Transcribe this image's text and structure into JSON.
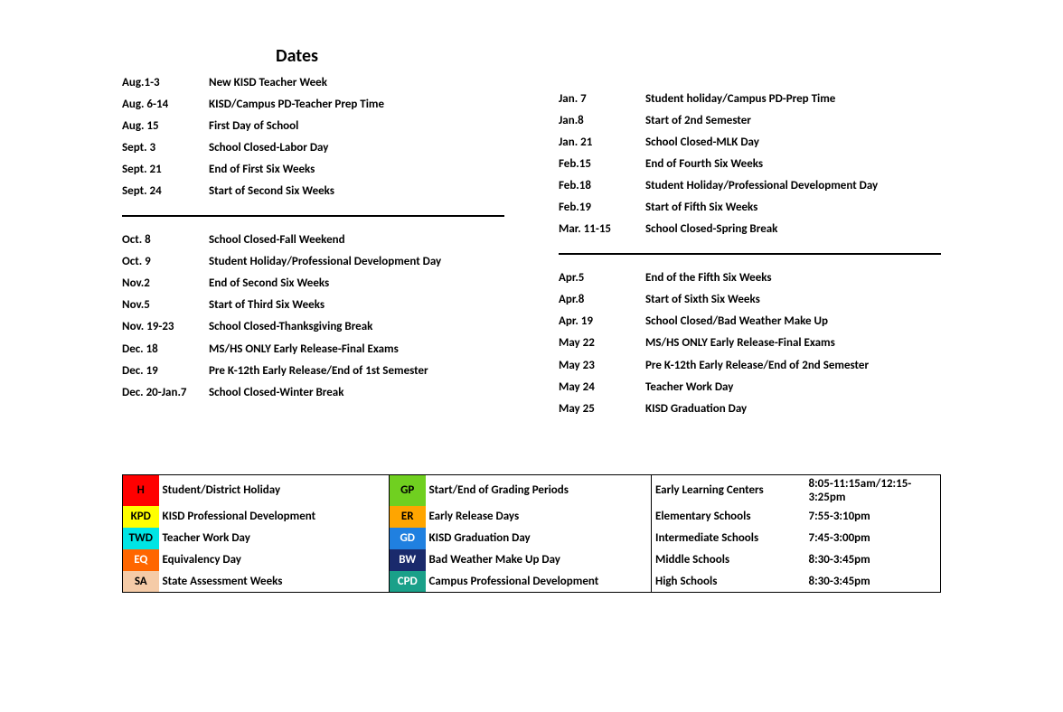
{
  "title": "Dates",
  "left_top": [
    {
      "date": "Aug.1-3",
      "desc": "New KISD Teacher Week"
    },
    {
      "date": "Aug. 6-14",
      "desc": "KISD/Campus PD-Teacher Prep Time"
    },
    {
      "date": "Aug. 15",
      "desc": "First Day of School"
    },
    {
      "date": "Sept. 3",
      "desc": "School Closed-Labor Day"
    },
    {
      "date": "Sept. 21",
      "desc": "End of First Six Weeks"
    },
    {
      "date": "Sept. 24",
      "desc": "Start of Second Six Weeks"
    }
  ],
  "left_bottom": [
    {
      "date": "Oct. 8",
      "desc": "School Closed-Fall Weekend"
    },
    {
      "date": "Oct. 9",
      "desc": "Student Holiday/Professional Development Day"
    },
    {
      "date": "Nov.2",
      "desc": "End of Second Six Weeks"
    },
    {
      "date": "Nov.5",
      "desc": "Start of Third Six Weeks"
    },
    {
      "date": "Nov. 19-23",
      "desc": "School Closed-Thanksgiving Break"
    },
    {
      "date": "Dec. 18",
      "desc": "MS/HS ONLY Early Release-Final Exams"
    },
    {
      "date": "Dec. 19",
      "desc": "Pre K-12th Early Release/End of 1st Semester"
    },
    {
      "date": "Dec. 20-Jan.7",
      "desc": "School Closed-Winter Break"
    }
  ],
  "right_top": [
    {
      "date": "Jan. 7",
      "desc": "Student holiday/Campus PD-Prep Time"
    },
    {
      "date": "Jan.8",
      "desc": "Start of 2nd Semester"
    },
    {
      "date": "Jan. 21",
      "desc": "School Closed-MLK Day"
    },
    {
      "date": "Feb.15",
      "desc": "End of Fourth Six Weeks"
    },
    {
      "date": "Feb.18",
      "desc": "Student Holiday/Professional Development Day"
    },
    {
      "date": "Feb.19",
      "desc": "Start of Fifth Six Weeks"
    },
    {
      "date": "Mar. 11-15",
      "desc": "School Closed-Spring Break"
    }
  ],
  "right_bottom": [
    {
      "date": "Apr.5",
      "desc": "End of the Fifth Six Weeks"
    },
    {
      "date": "Apr.8",
      "desc": "Start of Sixth Six Weeks"
    },
    {
      "date": "Apr. 19",
      "desc": "School Closed/Bad Weather Make Up"
    },
    {
      "date": "May 22",
      "desc": "MS/HS ONLY Early Release-Final Exams"
    },
    {
      "date": "May 23",
      "desc": "Pre K-12th Early Release/End of 2nd Semester"
    },
    {
      "date": "May 24",
      "desc": "Teacher Work Day"
    },
    {
      "date": "May 25",
      "desc": "KISD Graduation Day"
    }
  ],
  "legend_left": [
    {
      "code": "H",
      "bg": "#ff0000",
      "fg": "#000000",
      "label": "Student/District Holiday"
    },
    {
      "code": "KPD",
      "bg": "#ffff00",
      "fg": "#000000",
      "label": "KISD Professional Development"
    },
    {
      "code": "TWD",
      "bg": "#00e5e5",
      "fg": "#000000",
      "label": "Teacher Work Day"
    },
    {
      "code": "EQ",
      "bg": "#ff6600",
      "fg": "#ffffff",
      "label": "Equivalency Day"
    },
    {
      "code": "SA",
      "bg": "#f5cba7",
      "fg": "#000000",
      "label": "State Assessment Weeks"
    }
  ],
  "legend_mid": [
    {
      "code": "GP",
      "bg": "#70d020",
      "fg": "#000000",
      "label": "Start/End of Grading Periods"
    },
    {
      "code": "ER",
      "bg": "#ffa500",
      "fg": "#000000",
      "label": "Early Release Days"
    },
    {
      "code": "GD",
      "bg": "#2080e0",
      "fg": "#ffffff",
      "label": "KISD Graduation Day"
    },
    {
      "code": "BW",
      "bg": "#1a2a6c",
      "fg": "#ffffff",
      "label": "Bad Weather Make Up Day"
    },
    {
      "code": "CPD",
      "bg": "#1aa089",
      "fg": "#ffffff",
      "label": "Campus Professional Development"
    }
  ],
  "schedules": [
    {
      "name": "Early Learning Centers",
      "time": "8:05-11:15am/12:15-3:25pm"
    },
    {
      "name": "Elementary Schools",
      "time": "7:55-3:10pm"
    },
    {
      "name": "Intermediate Schools",
      "time": "7:45-3:00pm"
    },
    {
      "name": "Middle Schools",
      "time": "8:30-3:45pm"
    },
    {
      "name": "High Schools",
      "time": "8:30-3:45pm"
    }
  ]
}
